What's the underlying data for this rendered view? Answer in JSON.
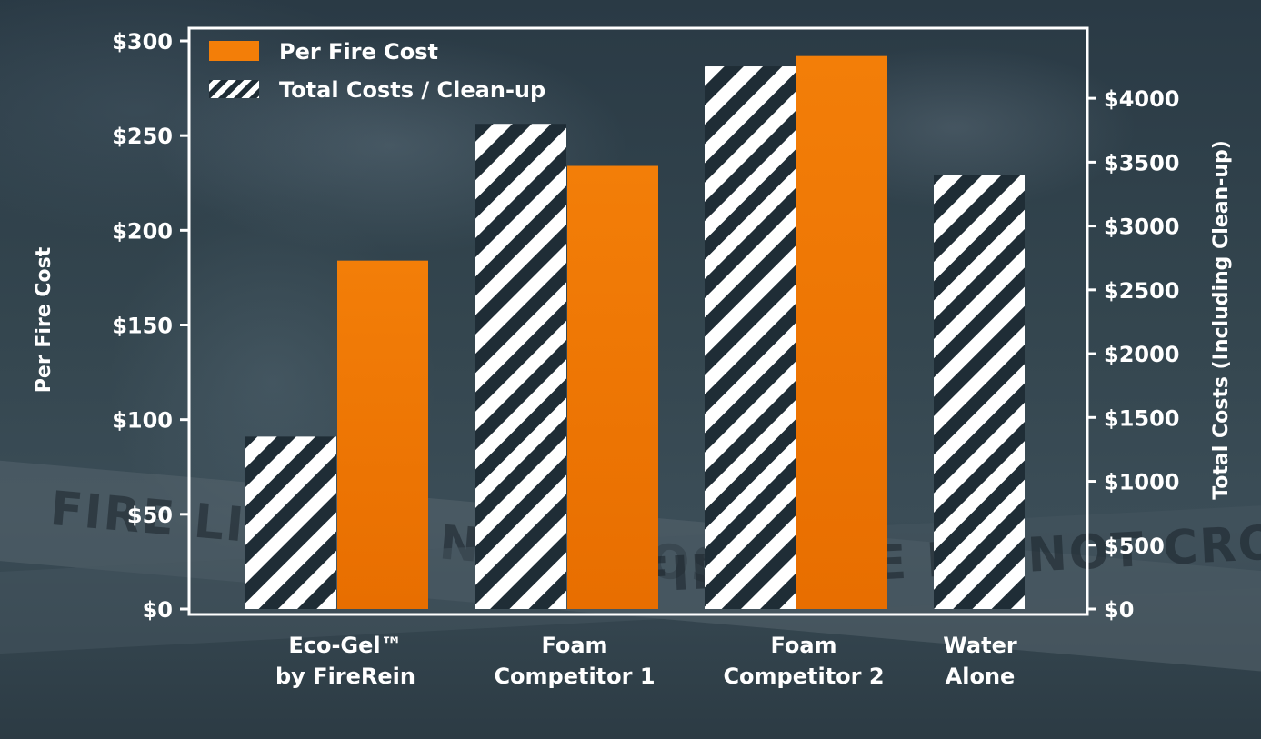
{
  "chart_data": {
    "type": "bar",
    "categories": [
      [
        "Eco-Gel™",
        "by FireRein"
      ],
      [
        "Foam",
        "Competitor 1"
      ],
      [
        "Foam",
        "Competitor 2"
      ],
      [
        "Water",
        "Alone"
      ]
    ],
    "series": [
      {
        "name": "Total Costs / Clean-up",
        "axis": "right",
        "pattern": "diagonal-stripes",
        "values": [
          1350,
          3800,
          4250,
          3400
        ]
      },
      {
        "name": "Per Fire Cost",
        "axis": "left",
        "color": "#f37e08",
        "values": [
          184,
          234,
          292,
          null
        ]
      }
    ],
    "ylabel": "Per Fire Cost",
    "ylabel_right": "Total Costs (Including Clean-up)",
    "ylim": [
      0,
      300
    ],
    "ylim_right": [
      0,
      4300
    ],
    "yticks": [
      "$0",
      "$50",
      "$100",
      "$150",
      "$200",
      "$250",
      "$300"
    ],
    "yticks_right": [
      "$0",
      "$500",
      "$1000",
      "$1500",
      "$2000",
      "$2500",
      "$3000",
      "$3500",
      "$4000"
    ],
    "legend_position": "top-left",
    "grid": false
  },
  "background": {
    "tape_text_1": "FIRE LINE DO NOT CROSS",
    "tape_text_2": "FIRE LINE DO NOT CROSS FI"
  },
  "colors": {
    "bar_orange": "#f37e08",
    "bar_orange_dark": "#e86e00",
    "frame": "#ffffff",
    "stripe_dark": "#1f2d36"
  }
}
